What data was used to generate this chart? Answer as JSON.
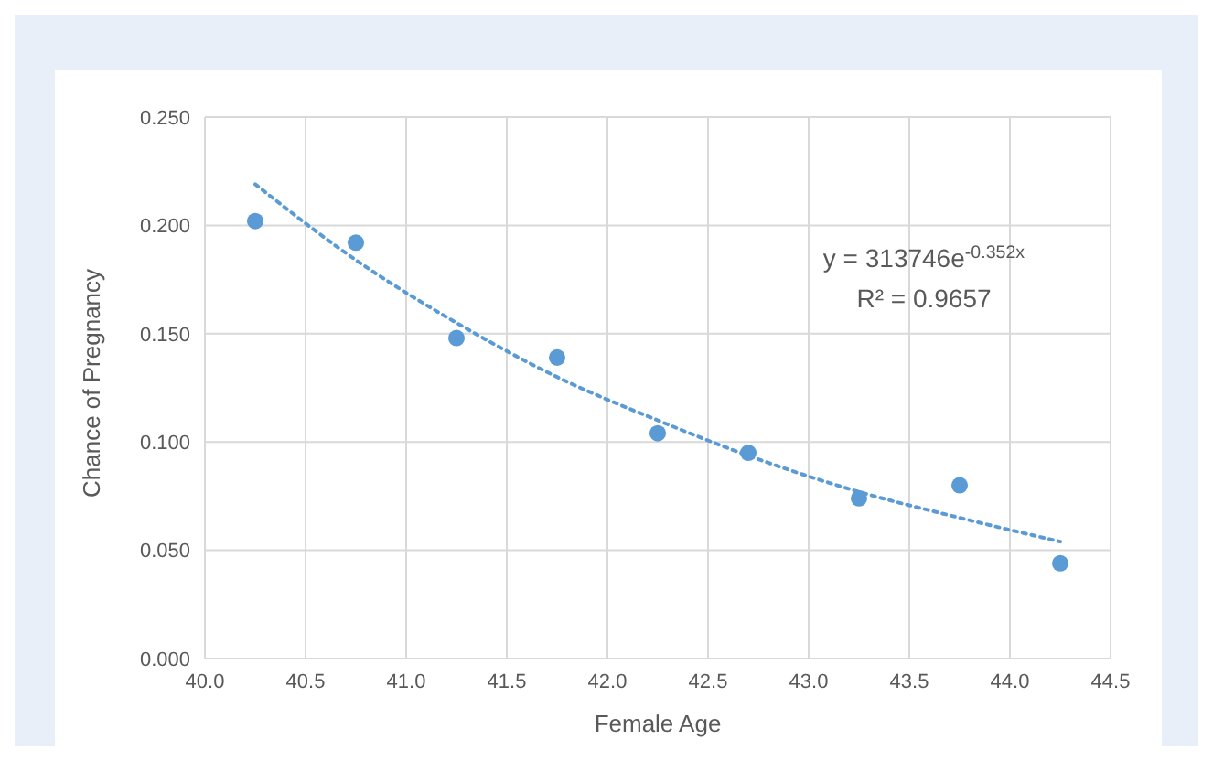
{
  "chart_data": {
    "type": "scatter",
    "xlabel": "Female Age",
    "ylabel": "Chance of Pregnancy",
    "xlim": [
      40.0,
      44.5
    ],
    "xticks": [
      {
        "value": 40,
        "label": "40.0"
      },
      40.5,
      {
        "value": 41,
        "label": "41.0"
      },
      41.5,
      {
        "value": 42,
        "label": "42.0"
      },
      42.5,
      {
        "value": 43,
        "label": "43.0"
      },
      43.5,
      {
        "value": 44,
        "label": "44.0"
      },
      44.5
    ],
    "ylim": [
      0,
      0.25
    ],
    "yticks": [
      {
        "value": 0,
        "label": "0.000"
      },
      {
        "value": 0.05,
        "label": "0.050"
      },
      {
        "value": 0.1,
        "label": "0.100"
      },
      {
        "value": 0.15,
        "label": "0.150"
      },
      {
        "value": 0.2,
        "label": "0.200"
      },
      {
        "value": 0.25,
        "label": "0.250"
      }
    ],
    "grid": true,
    "series": [
      {
        "marker": "circle",
        "color": "#5b9bd5",
        "x": [
          40.25,
          40.75,
          41.25,
          41.75,
          42.25,
          42.7,
          43.25,
          43.75,
          44.25
        ],
        "values": [
          0.202,
          0.192,
          0.148,
          0.139,
          0.104,
          0.095,
          0.074,
          0.08,
          0.044
        ]
      },
      {
        "type": "line",
        "marker": "none",
        "color": "#5b9bd5",
        "line_style": "dotted",
        "x": [
          40.25,
          40.75,
          41.25,
          41.75,
          42.25,
          42.75,
          43.25,
          43.75,
          44.25
        ],
        "values": [
          0.219,
          0.184,
          0.155,
          0.13,
          0.11,
          0.092,
          0.077,
          0.065,
          0.054
        ]
      }
    ],
    "annotations": [
      "y = 313746e$^{-0.352x}$",
      "R² = 0.9657"
    ]
  }
}
